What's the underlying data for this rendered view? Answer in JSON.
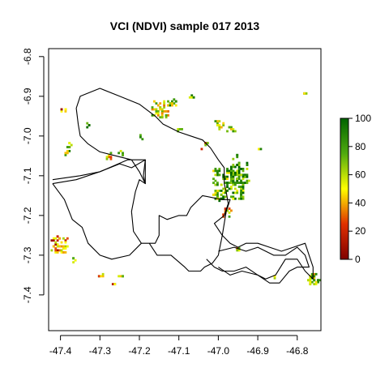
{
  "chart_data": {
    "type": "heatmap",
    "title": "VCI (NDVI) sample 017 2013",
    "xlabel": "",
    "ylabel": "",
    "xlim": [
      -47.43,
      -46.74
    ],
    "ylim": [
      -7.49,
      -6.78
    ],
    "x_ticks": [
      -47.4,
      -47.3,
      -47.2,
      -47.1,
      -47.0,
      -46.9,
      -46.8
    ],
    "x_tick_labels": [
      "-47.4",
      "-47.3",
      "-47.2",
      "-47.1",
      "-47.0",
      "-46.9",
      "-46.8"
    ],
    "y_ticks": [
      -6.8,
      -6.9,
      -7.0,
      -7.1,
      -7.2,
      -7.3,
      -7.4
    ],
    "y_tick_labels": [
      "-6.8",
      "-6.9",
      "-7.0",
      "-7.1",
      "-7.2",
      "-7.3",
      "-7.4"
    ],
    "grid": false,
    "legend": {
      "placement": "right",
      "min": 0,
      "max": 100,
      "ticks": [
        0,
        20,
        40,
        60,
        80,
        100
      ],
      "tick_labels": [
        "0",
        "20",
        "40",
        "60",
        "80",
        "100"
      ],
      "colors": [
        "#7f0000",
        "#e03000",
        "#ffff00",
        "#50aa10",
        "#006400"
      ]
    },
    "boundary_main": [
      [
        -47.42,
        -7.12
      ],
      [
        -47.36,
        -7.11
      ],
      [
        -47.3,
        -7.09
      ],
      [
        -47.25,
        -7.07
      ],
      [
        -47.22,
        -7.08
      ],
      [
        -47.185,
        -7.06
      ],
      [
        -47.185,
        -7.12
      ],
      [
        -47.2,
        -7.11
      ],
      [
        -47.21,
        -7.14
      ],
      [
        -47.22,
        -7.19
      ],
      [
        -47.215,
        -7.24
      ],
      [
        -47.195,
        -7.27
      ],
      [
        -47.175,
        -7.27
      ],
      [
        -47.155,
        -7.3
      ],
      [
        -47.12,
        -7.3
      ],
      [
        -47.085,
        -7.33
      ],
      [
        -47.075,
        -7.34
      ],
      [
        -47.045,
        -7.34
      ],
      [
        -47.035,
        -7.33
      ],
      [
        -47.015,
        -7.32
      ],
      [
        -47.0,
        -7.3
      ],
      [
        -46.99,
        -7.25
      ],
      [
        -46.98,
        -7.19
      ],
      [
        -46.97,
        -7.16
      ],
      [
        -46.99,
        -7.16
      ],
      [
        -47.04,
        -7.15
      ],
      [
        -47.07,
        -7.18
      ],
      [
        -47.08,
        -7.2
      ],
      [
        -47.1,
        -7.2
      ],
      [
        -47.13,
        -7.21
      ],
      [
        -47.15,
        -7.2
      ],
      [
        -47.15,
        -7.25
      ],
      [
        -47.16,
        -7.27
      ],
      [
        -47.195,
        -7.27
      ],
      [
        -47.225,
        -7.3
      ],
      [
        -47.27,
        -7.31
      ],
      [
        -47.3,
        -7.3
      ],
      [
        -47.33,
        -7.27
      ],
      [
        -47.345,
        -7.23
      ],
      [
        -47.37,
        -7.21
      ],
      [
        -47.39,
        -7.16
      ],
      [
        -47.42,
        -7.12
      ]
    ],
    "boundary_north": [
      [
        -47.42,
        -7.11
      ],
      [
        -47.35,
        -7.1
      ],
      [
        -47.3,
        -7.09
      ],
      [
        -47.23,
        -7.06
      ],
      [
        -47.185,
        -7.06
      ],
      [
        -47.19,
        -7.1
      ],
      [
        -47.185,
        -7.12
      ],
      [
        -47.2,
        -7.09
      ],
      [
        -47.22,
        -7.06
      ],
      [
        -47.26,
        -7.05
      ],
      [
        -47.3,
        -7.04
      ],
      [
        -47.33,
        -7.02
      ],
      [
        -47.35,
        -7.0
      ],
      [
        -47.355,
        -6.97
      ],
      [
        -47.36,
        -6.93
      ],
      [
        -47.35,
        -6.9
      ],
      [
        -47.3,
        -6.88
      ],
      [
        -47.25,
        -6.9
      ],
      [
        -47.2,
        -6.92
      ],
      [
        -47.16,
        -6.95
      ],
      [
        -47.14,
        -6.97
      ],
      [
        -47.1,
        -6.99
      ],
      [
        -47.07,
        -7.0
      ],
      [
        -47.04,
        -7.01
      ],
      [
        -47.02,
        -7.03
      ],
      [
        -47.0,
        -7.06
      ],
      [
        -46.985,
        -7.08
      ],
      [
        -46.985,
        -7.12
      ],
      [
        -46.98,
        -7.14
      ],
      [
        -46.975,
        -7.17
      ],
      [
        -46.985,
        -7.2
      ],
      [
        -47.01,
        -7.22
      ],
      [
        -46.99,
        -7.25
      ],
      [
        -46.97,
        -7.27
      ],
      [
        -46.95,
        -7.28
      ],
      [
        -46.93,
        -7.27
      ],
      [
        -46.9,
        -7.27
      ],
      [
        -46.87,
        -7.28
      ],
      [
        -46.84,
        -7.29
      ],
      [
        -46.81,
        -7.28
      ],
      [
        -46.78,
        -7.27
      ],
      [
        -46.77,
        -7.3
      ],
      [
        -46.76,
        -7.33
      ],
      [
        -46.76,
        -7.36
      ],
      [
        -46.78,
        -7.34
      ],
      [
        -46.8,
        -7.31
      ],
      [
        -46.83,
        -7.31
      ],
      [
        -46.855,
        -7.35
      ],
      [
        -46.88,
        -7.36
      ],
      [
        -46.9,
        -7.35
      ],
      [
        -46.93,
        -7.33
      ],
      [
        -46.96,
        -7.34
      ],
      [
        -46.99,
        -7.34
      ],
      [
        -47.01,
        -7.33
      ],
      [
        -47.03,
        -7.31
      ]
    ],
    "boundary_east": [
      [
        -47.0,
        -7.29
      ],
      [
        -46.96,
        -7.28
      ],
      [
        -46.93,
        -7.29
      ],
      [
        -46.9,
        -7.28
      ],
      [
        -46.86,
        -7.3
      ],
      [
        -46.83,
        -7.3
      ],
      [
        -46.8,
        -7.28
      ],
      [
        -46.78,
        -7.3
      ],
      [
        -46.77,
        -7.33
      ],
      [
        -46.8,
        -7.33
      ],
      [
        -46.82,
        -7.34
      ],
      [
        -46.845,
        -7.37
      ],
      [
        -46.87,
        -7.37
      ],
      [
        -46.9,
        -7.35
      ],
      [
        -46.94,
        -7.34
      ],
      [
        -46.97,
        -7.35
      ],
      [
        -47.0,
        -7.33
      ]
    ],
    "pixel_clusters": [
      {
        "x": -47.395,
        "y": -6.93,
        "n": 6,
        "spread": 0.006,
        "value": 30
      },
      {
        "x": -47.38,
        "y": -7.02,
        "n": 6,
        "spread": 0.006,
        "value": 55
      },
      {
        "x": -47.385,
        "y": -7.04,
        "n": 5,
        "spread": 0.005,
        "value": 70
      },
      {
        "x": -47.33,
        "y": -6.97,
        "n": 4,
        "spread": 0.005,
        "value": 85
      },
      {
        "x": -47.28,
        "y": -7.05,
        "n": 7,
        "spread": 0.008,
        "value": 55
      },
      {
        "x": -47.25,
        "y": -7.04,
        "n": 5,
        "spread": 0.006,
        "value": 80
      },
      {
        "x": -47.15,
        "y": -6.93,
        "n": 40,
        "spread": 0.02,
        "value": 60
      },
      {
        "x": -47.12,
        "y": -6.91,
        "n": 14,
        "spread": 0.01,
        "value": 70
      },
      {
        "x": -47.1,
        "y": -6.98,
        "n": 4,
        "spread": 0.005,
        "value": 65
      },
      {
        "x": -47.07,
        "y": -6.9,
        "n": 5,
        "spread": 0.005,
        "value": 75
      },
      {
        "x": -47.04,
        "y": -7.02,
        "n": 8,
        "spread": 0.008,
        "value": 45
      },
      {
        "x": -47.0,
        "y": -6.97,
        "n": 12,
        "spread": 0.012,
        "value": 55
      },
      {
        "x": -46.97,
        "y": -6.98,
        "n": 8,
        "spread": 0.01,
        "value": 60
      },
      {
        "x": -46.96,
        "y": -7.05,
        "n": 4,
        "spread": 0.005,
        "value": 70
      },
      {
        "x": -46.975,
        "y": -7.12,
        "n": 160,
        "spread": 0.04,
        "value": 75
      },
      {
        "x": -46.95,
        "y": -7.09,
        "n": 40,
        "spread": 0.025,
        "value": 85
      },
      {
        "x": -46.98,
        "y": -7.19,
        "n": 12,
        "spread": 0.012,
        "value": 50
      },
      {
        "x": -46.955,
        "y": -7.28,
        "n": 5,
        "spread": 0.006,
        "value": 45
      },
      {
        "x": -46.78,
        "y": -6.89,
        "n": 4,
        "spread": 0.005,
        "value": 70
      },
      {
        "x": -46.76,
        "y": -7.36,
        "n": 30,
        "spread": 0.014,
        "value": 65
      },
      {
        "x": -46.86,
        "y": -7.35,
        "n": 3,
        "spread": 0.004,
        "value": 40
      },
      {
        "x": -46.9,
        "y": -7.03,
        "n": 3,
        "spread": 0.004,
        "value": 70
      },
      {
        "x": -47.405,
        "y": -7.27,
        "n": 40,
        "spread": 0.02,
        "value": 35
      },
      {
        "x": -47.37,
        "y": -7.31,
        "n": 4,
        "spread": 0.005,
        "value": 70
      },
      {
        "x": -47.3,
        "y": -7.35,
        "n": 5,
        "spread": 0.006,
        "value": 55
      },
      {
        "x": -47.27,
        "y": -7.37,
        "n": 3,
        "spread": 0.004,
        "value": 20
      },
      {
        "x": -47.25,
        "y": -7.35,
        "n": 4,
        "spread": 0.005,
        "value": 60
      },
      {
        "x": -47.2,
        "y": -7.0,
        "n": 3,
        "spread": 0.004,
        "value": 70
      }
    ]
  }
}
